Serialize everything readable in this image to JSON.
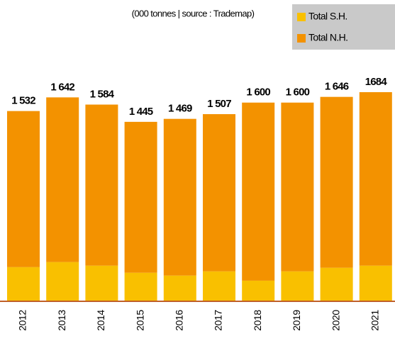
{
  "chart_data": {
    "type": "stacked_bar",
    "subtitle": "(000 tonnes | source : Trademap)",
    "categories": [
      "2012",
      "2013",
      "2014",
      "2015",
      "2016",
      "2017",
      "2018",
      "2019",
      "2020",
      "2021"
    ],
    "series": [
      {
        "name": "Total S.H.",
        "color": "#f9c000",
        "values": [
          275,
          316,
          287,
          230,
          207,
          241,
          166,
          241,
          270,
          287
        ]
      },
      {
        "name": "Total N.H.",
        "color": "#f39200",
        "values": [
          1257,
          1326,
          1297,
          1215,
          1262,
          1266,
          1434,
          1359,
          1376,
          1397
        ]
      }
    ],
    "totals": [
      1532,
      1642,
      1584,
      1445,
      1469,
      1507,
      1600,
      1600,
      1646,
      1684
    ],
    "total_labels": [
      "1 532",
      "1 642",
      "1 584",
      "1 445",
      "1 469",
      "1 507",
      "1 600",
      "1 600",
      "1 646",
      "1684"
    ]
  }
}
